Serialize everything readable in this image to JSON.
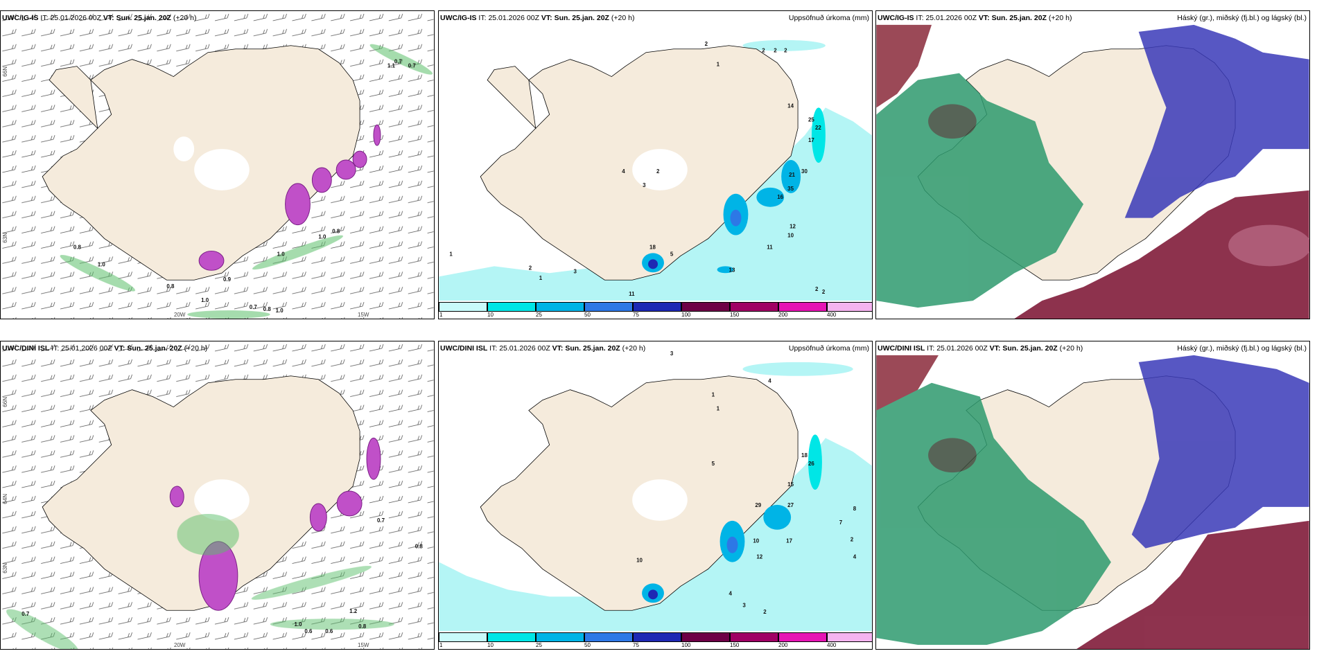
{
  "panels": [
    {
      "model": "UWC/IG-IS",
      "it_label": "IT:",
      "it": "25.01.2026 00Z",
      "vt_label": "VT:",
      "vt": "Sun. 25.jan. 20Z",
      "lead": "(+20 h)",
      "right": "",
      "type": "wind"
    },
    {
      "model": "UWC/IG-IS",
      "it_label": "IT:",
      "it": "25.01.2026 00Z",
      "vt_label": "VT:",
      "vt": "Sun. 25.jan. 20Z",
      "lead": "(+20 h)",
      "right": "Uppsöfnuð úrkoma (mm)",
      "type": "precip"
    },
    {
      "model": "UWC/IG-IS",
      "it_label": "IT:",
      "it": "25.01.2026 00Z",
      "vt_label": "VT:",
      "vt": "Sun. 25.jan. 20Z",
      "lead": "(+20 h)",
      "right": "Háský (gr.), miðský (fj.bl.) og lágský (bl.)",
      "type": "cloud"
    },
    {
      "model": "UWC/DINI ISL",
      "it_label": "IT:",
      "it": "25.01.2026 00Z",
      "vt_label": "VT:",
      "vt": "Sun. 25.jan. 20Z",
      "lead": "(+20 h)",
      "right": "",
      "type": "wind"
    },
    {
      "model": "UWC/DINI ISL",
      "it_label": "IT:",
      "it": "25.01.2026 00Z",
      "vt_label": "VT:",
      "vt": "Sun. 25.jan. 20Z",
      "lead": "(+20 h)",
      "right": "Uppsöfnuð úrkoma (mm)",
      "type": "precip"
    },
    {
      "model": "UWC/DINI ISL",
      "it_label": "IT:",
      "it": "25.01.2026 00Z",
      "vt_label": "VT:",
      "vt": "Sun. 25.jan. 20Z",
      "lead": "(+20 h)",
      "right": "Háský (gr.), miðský (fj.bl.) og lágský (bl.)",
      "type": "cloud"
    }
  ],
  "grid_labels": {
    "lat66": "66N",
    "lat64": "64N",
    "lat63": "63N",
    "lon20": "20W",
    "lon15": "15W",
    "lat65": "65N"
  },
  "colorbar": {
    "ticks": [
      "1",
      "10",
      "25",
      "50",
      "75",
      "100",
      "150",
      "200",
      "400"
    ],
    "colors": [
      "#c8fafa",
      "#00e6e6",
      "#00b4e6",
      "#2d78e6",
      "#1e28b4",
      "#6e0046",
      "#a00064",
      "#e614b4",
      "#f5b4f0"
    ]
  },
  "colors": {
    "land": "#f5ebdc",
    "precip_light": "#b4f5f5",
    "cloud_high": "#7a0f2f",
    "cloud_mid": "#3a3ab8",
    "cloud_low": "#2e9a6e",
    "wind_green": "#5bbf6a",
    "magenta": "#c050c8"
  },
  "wind_values": {
    "top": [
      "0.7",
      "1.1",
      "0.7",
      "0.8",
      "1.0",
      "1.0",
      "0.8",
      "1.0",
      "0.9",
      "0.8",
      "1.0",
      "0.7",
      "0.8",
      "1.0"
    ],
    "bottom": [
      "0.7",
      "0.8",
      "0.7",
      "1.2",
      "1.0",
      "0.8",
      "0.6",
      "0.6"
    ]
  },
  "precip_values": {
    "top": [
      "2",
      "1",
      "2",
      "2",
      "2",
      "14",
      "25",
      "22",
      "17",
      "21",
      "30",
      "35",
      "16",
      "12",
      "10",
      "11",
      "13",
      "18",
      "5",
      "3",
      "4",
      "2",
      "3",
      "1",
      "2",
      "1",
      "11",
      "2",
      "2"
    ],
    "bottom": [
      "3",
      "1",
      "4",
      "1",
      "5",
      "18",
      "26",
      "15",
      "29",
      "27",
      "10",
      "17",
      "12",
      "16",
      "10",
      "4",
      "3",
      "2",
      "8",
      "7",
      "2",
      "4",
      "3"
    ]
  }
}
